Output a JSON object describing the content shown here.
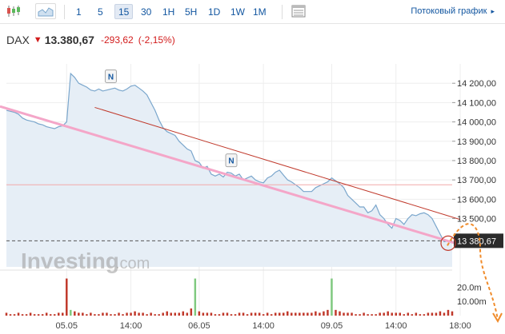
{
  "toolbar": {
    "intervals": [
      {
        "label": "1",
        "active": false
      },
      {
        "label": "5",
        "active": false
      },
      {
        "label": "15",
        "active": true
      },
      {
        "label": "30",
        "active": false
      },
      {
        "label": "1H",
        "active": false
      },
      {
        "label": "5H",
        "active": false
      },
      {
        "label": "1D",
        "active": false
      },
      {
        "label": "1W",
        "active": false
      },
      {
        "label": "1M",
        "active": false
      }
    ],
    "icons": [
      "candlestick-icon",
      "area-chart-icon",
      "table-icon"
    ],
    "stream_label": "Потоковый график",
    "stream_icon": "chevron-right-icon"
  },
  "quote": {
    "name": "DAX",
    "direction_icon": "down-arrow-icon",
    "last": "13.380,67",
    "change": "-293,62",
    "change_pct": "(-2,15%)",
    "colors": {
      "down": "#d21c1c",
      "link": "#1256a0"
    }
  },
  "watermark": {
    "brand": "Investing",
    "suffix": ".com"
  },
  "chart_data": {
    "type": "area",
    "y_unit": "index points",
    "ylim": [
      13250,
      14300
    ],
    "y_ticks": [
      "14 200,00",
      "14 100,00",
      "14 000,00",
      "13 900,00",
      "13 800,00",
      "13 700,00",
      "13 600,00",
      "13 500,00"
    ],
    "y_tick_values": [
      14200,
      14100,
      14000,
      13900,
      13800,
      13700,
      13600,
      13500
    ],
    "x_ticks": [
      "05.05",
      "14:00",
      "06.05",
      "14:00",
      "09.05",
      "14:00",
      "18:00"
    ],
    "x_tick_index": [
      15,
      31,
      48,
      64,
      81,
      97,
      113
    ],
    "series": [
      {
        "values": [
          14060,
          14055,
          14050,
          14040,
          14020,
          14010,
          14005,
          14000,
          13990,
          13985,
          13975,
          13970,
          13965,
          13975,
          13980,
          14000,
          14250,
          14230,
          14200,
          14190,
          14180,
          14165,
          14160,
          14170,
          14160,
          14165,
          14170,
          14175,
          14165,
          14160,
          14170,
          14185,
          14190,
          14175,
          14160,
          14140,
          14100,
          14060,
          14010,
          13970,
          13950,
          13940,
          13930,
          13900,
          13880,
          13860,
          13850,
          13800,
          13790,
          13760,
          13770,
          13730,
          13720,
          13730,
          13715,
          13740,
          13735,
          13720,
          13730,
          13700,
          13710,
          13720,
          13700,
          13690,
          13685,
          13710,
          13720,
          13740,
          13750,
          13725,
          13700,
          13690,
          13675,
          13660,
          13640,
          13640,
          13640,
          13660,
          13670,
          13680,
          13690,
          13710,
          13695,
          13680,
          13660,
          13620,
          13600,
          13580,
          13560,
          13560,
          13530,
          13540,
          13570,
          13520,
          13500,
          13470,
          13450,
          13500,
          13490,
          13470,
          13500,
          13520,
          13515,
          13525,
          13530,
          13520,
          13500,
          13460,
          13420,
          13380,
          13385,
          13380
        ]
      }
    ],
    "volume": {
      "label_ticks": [
        "20.0m",
        "10.00m"
      ],
      "label_tick_values": [
        20,
        10
      ],
      "max": 28,
      "values": [
        2,
        1,
        1,
        2,
        1,
        1,
        2,
        1,
        1,
        1,
        2,
        1,
        1,
        2,
        2,
        26,
        4,
        3,
        2,
        2,
        1,
        2,
        1,
        1,
        2,
        2,
        1,
        1,
        2,
        1,
        2,
        2,
        3,
        2,
        2,
        1,
        2,
        1,
        1,
        2,
        3,
        2,
        2,
        2,
        3,
        2,
        5,
        26,
        3,
        2,
        2,
        2,
        1,
        1,
        2,
        2,
        1,
        1,
        2,
        2,
        1,
        2,
        2,
        2,
        1,
        2,
        1,
        2,
        2,
        2,
        3,
        2,
        2,
        2,
        2,
        2,
        2,
        3,
        2,
        3,
        4,
        26,
        4,
        3,
        2,
        2,
        2,
        1,
        1,
        2,
        1,
        1,
        1,
        2,
        2,
        3,
        2,
        2,
        2,
        1,
        2,
        1,
        2,
        1,
        1,
        2,
        2,
        2,
        3,
        2,
        4,
        3
      ],
      "up_indices": [
        16,
        47,
        81
      ]
    },
    "annotations": {
      "news_markers": [
        {
          "label": "N",
          "index": 26
        },
        {
          "label": "N",
          "index": 56
        }
      ],
      "current_price_label": "13 380,67",
      "reference_level": 13675,
      "close_level": 13385,
      "trendline_red": {
        "from": [
          22,
          14075
        ],
        "to": [
          113,
          13495
        ]
      },
      "trendline_pink": {
        "from": [
          0,
          14080
        ],
        "to": [
          113,
          13365
        ]
      }
    },
    "grid": true,
    "colors": {
      "line": "#7aa6cc",
      "fill": "#e6eef6",
      "grid": "#eeeeee",
      "trend_red": "#c0392b",
      "trend_pink": "#f4a6c8",
      "volume_down": "#c0392b",
      "volume_up": "#7fc97f",
      "price_label_bg": "#2b2b2b",
      "forecast": "#f08c2c"
    }
  }
}
